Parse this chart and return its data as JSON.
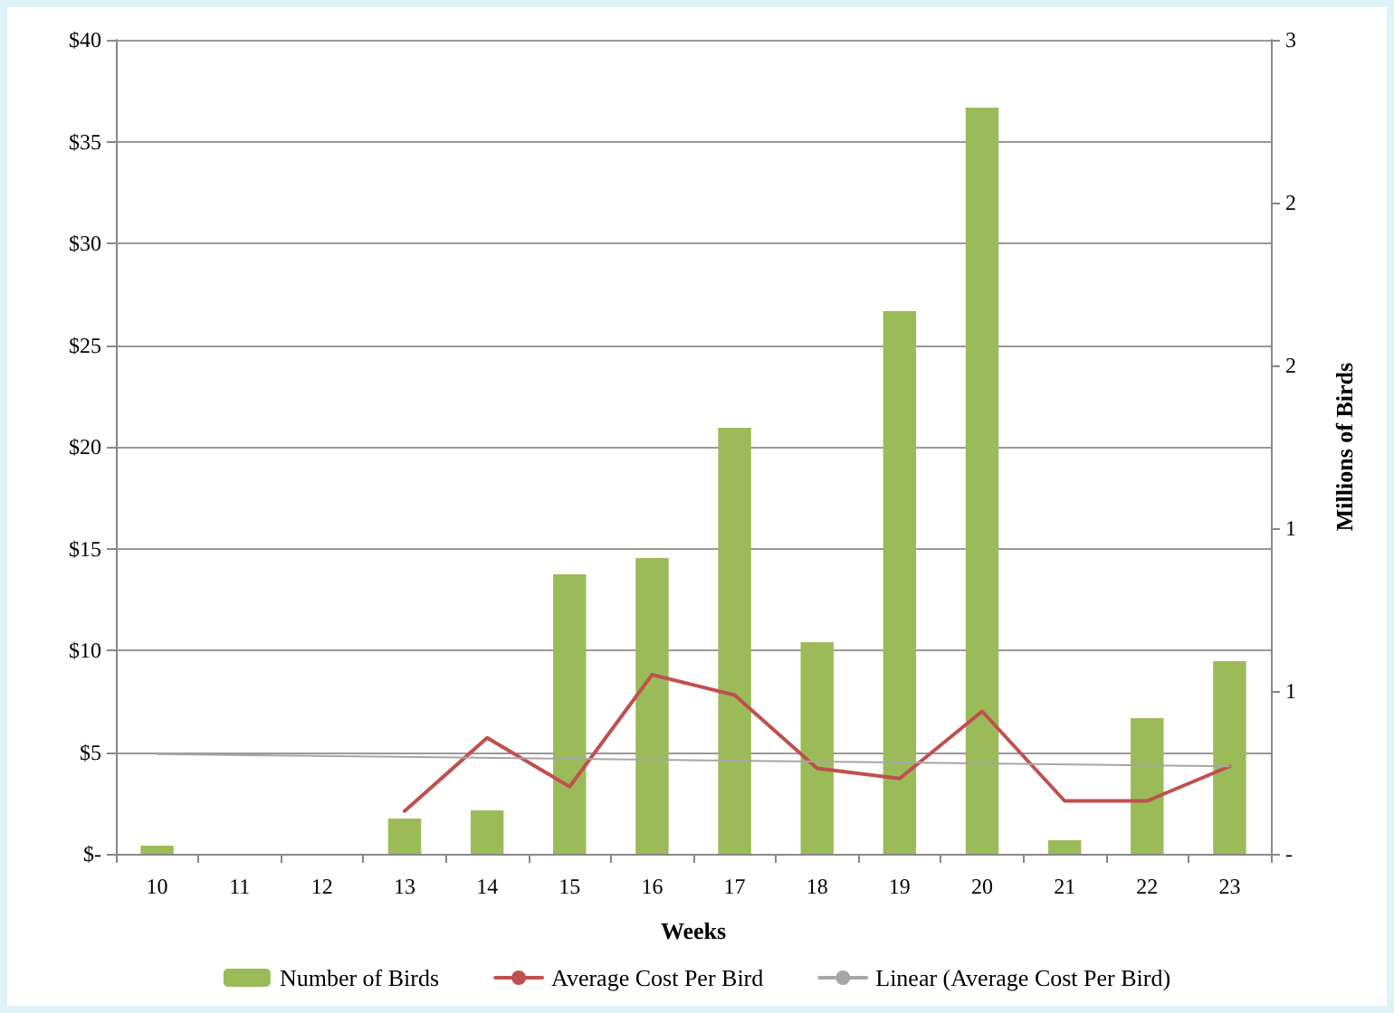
{
  "chart_data": {
    "type": "bar",
    "xlabel": "Weeks",
    "y2label": "Millions of Birds",
    "categories": [
      "10",
      "11",
      "12",
      "13",
      "14",
      "15",
      "16",
      "17",
      "18",
      "19",
      "20",
      "21",
      "22",
      "23"
    ],
    "series": [
      {
        "name": "Number of Birds",
        "axis": "y2",
        "color": "#9bbb59",
        "values": [
          0.03,
          0,
          0,
          0.13,
          0.16,
          1.03,
          1.09,
          1.57,
          0.78,
          2.0,
          2.75,
          0.05,
          0.5,
          0.71
        ]
      },
      {
        "name": "Average Cost Per Bird",
        "type": "line",
        "color": "#c0504d",
        "values": [
          null,
          null,
          null,
          2.1,
          5.7,
          3.3,
          8.8,
          7.8,
          4.2,
          3.7,
          7.0,
          2.6,
          2.6,
          4.3
        ]
      },
      {
        "name": "Linear (Average Cost Per Bird)",
        "type": "line",
        "color": "#a6a6a6",
        "x": [
          "10",
          "23"
        ],
        "values": [
          4.9,
          4.3
        ]
      }
    ],
    "ylim": [
      0,
      40
    ],
    "yticks": [
      {
        "value": 0,
        "label": "$-"
      },
      {
        "value": 5,
        "label": "$5"
      },
      {
        "value": 10,
        "label": "$10"
      },
      {
        "value": 15,
        "label": "$15"
      },
      {
        "value": 20,
        "label": "$20"
      },
      {
        "value": 25,
        "label": "$25"
      },
      {
        "value": 30,
        "label": "$30"
      },
      {
        "value": 35,
        "label": "$35"
      },
      {
        "value": 40,
        "label": "$40"
      }
    ],
    "y2lim": [
      0,
      3
    ],
    "y2ticks": [
      {
        "value": 0,
        "label": "-"
      },
      {
        "value": 0.6,
        "label": "1"
      },
      {
        "value": 1.2,
        "label": "1"
      },
      {
        "value": 1.8,
        "label": "2"
      },
      {
        "value": 2.4,
        "label": "2"
      },
      {
        "value": 3,
        "label": "3"
      }
    ],
    "grid": "y",
    "legend": "bottom",
    "marker": "none",
    "line_style": "solid"
  }
}
